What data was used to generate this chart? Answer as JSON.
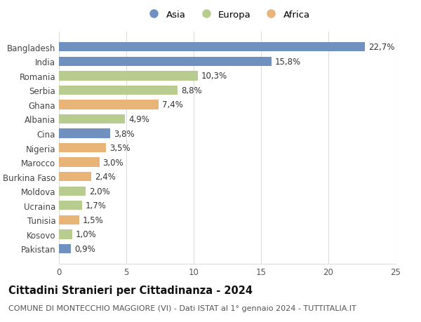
{
  "countries": [
    "Bangladesh",
    "India",
    "Romania",
    "Serbia",
    "Ghana",
    "Albania",
    "Cina",
    "Nigeria",
    "Marocco",
    "Burkina Faso",
    "Moldova",
    "Ucraina",
    "Tunisia",
    "Kosovo",
    "Pakistan"
  ],
  "values": [
    22.7,
    15.8,
    10.3,
    8.8,
    7.4,
    4.9,
    3.8,
    3.5,
    3.0,
    2.4,
    2.0,
    1.7,
    1.5,
    1.0,
    0.9
  ],
  "labels": [
    "22,7%",
    "15,8%",
    "10,3%",
    "8,8%",
    "7,4%",
    "4,9%",
    "3,8%",
    "3,5%",
    "3,0%",
    "2,4%",
    "2,0%",
    "1,7%",
    "1,5%",
    "1,0%",
    "0,9%"
  ],
  "continents": [
    "Asia",
    "Asia",
    "Europa",
    "Europa",
    "Africa",
    "Europa",
    "Asia",
    "Africa",
    "Africa",
    "Africa",
    "Europa",
    "Europa",
    "Africa",
    "Europa",
    "Asia"
  ],
  "colors": {
    "Asia": "#7090c0",
    "Europa": "#b8cc90",
    "Africa": "#e8b478"
  },
  "title": "Cittadini Stranieri per Cittadinanza - 2024",
  "subtitle": "COMUNE DI MONTECCHIO MAGGIORE (VI) - Dati ISTAT al 1° gennaio 2024 - TUTTITALIA.IT",
  "xlim": [
    0,
    25
  ],
  "xticks": [
    0,
    5,
    10,
    15,
    20,
    25
  ],
  "bg_color": "#ffffff",
  "grid_color": "#dddddd",
  "bar_height": 0.65,
  "label_fontsize": 8.5,
  "tick_fontsize": 8.5,
  "title_fontsize": 10.5,
  "subtitle_fontsize": 8.0
}
